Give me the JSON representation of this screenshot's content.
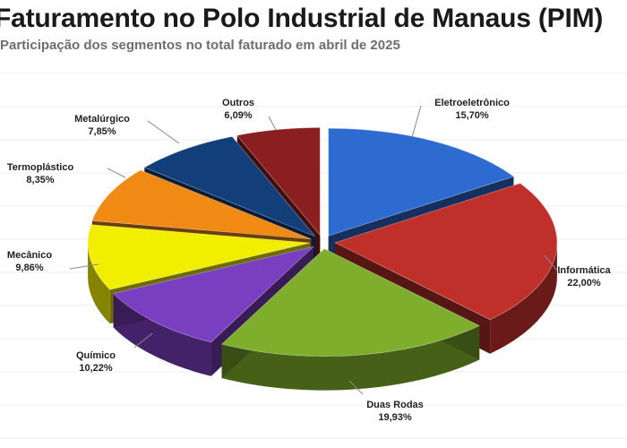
{
  "header": {
    "title": "Faturamento no Polo Industrial de Manaus (PIM)",
    "subtitle": "Participação dos segmentos no total faturado em abril de 2025"
  },
  "chart_data": {
    "type": "pie",
    "title": "Faturamento no Polo Industrial de Manaus (PIM)",
    "subtitle": "Participação dos segmentos no total faturado em abril de 2025",
    "style": "3d-exploded",
    "slices": [
      {
        "label": "Eletroeletrônico",
        "value": 15.7,
        "display": "15,70%",
        "color": "#2e6bd1"
      },
      {
        "label": "Informática",
        "value": 22.0,
        "display": "22,00%",
        "color": "#c0302b"
      },
      {
        "label": "Duas Rodas",
        "value": 19.93,
        "display": "19,93%",
        "color": "#7fae2c"
      },
      {
        "label": "Químico",
        "value": 10.22,
        "display": "10,22%",
        "color": "#7a3ec0"
      },
      {
        "label": "Mecânico",
        "value": 9.86,
        "display": "9,86%",
        "color": "#f2ee00"
      },
      {
        "label": "Termoplástico",
        "value": 8.35,
        "display": "8,35%",
        "color": "#f08a14"
      },
      {
        "label": "Metalúrgico",
        "value": 7.85,
        "display": "7,85%",
        "color": "#123f7a"
      },
      {
        "label": "Outros",
        "value": 6.09,
        "display": "6,09%",
        "color": "#8b1f1f"
      }
    ]
  }
}
